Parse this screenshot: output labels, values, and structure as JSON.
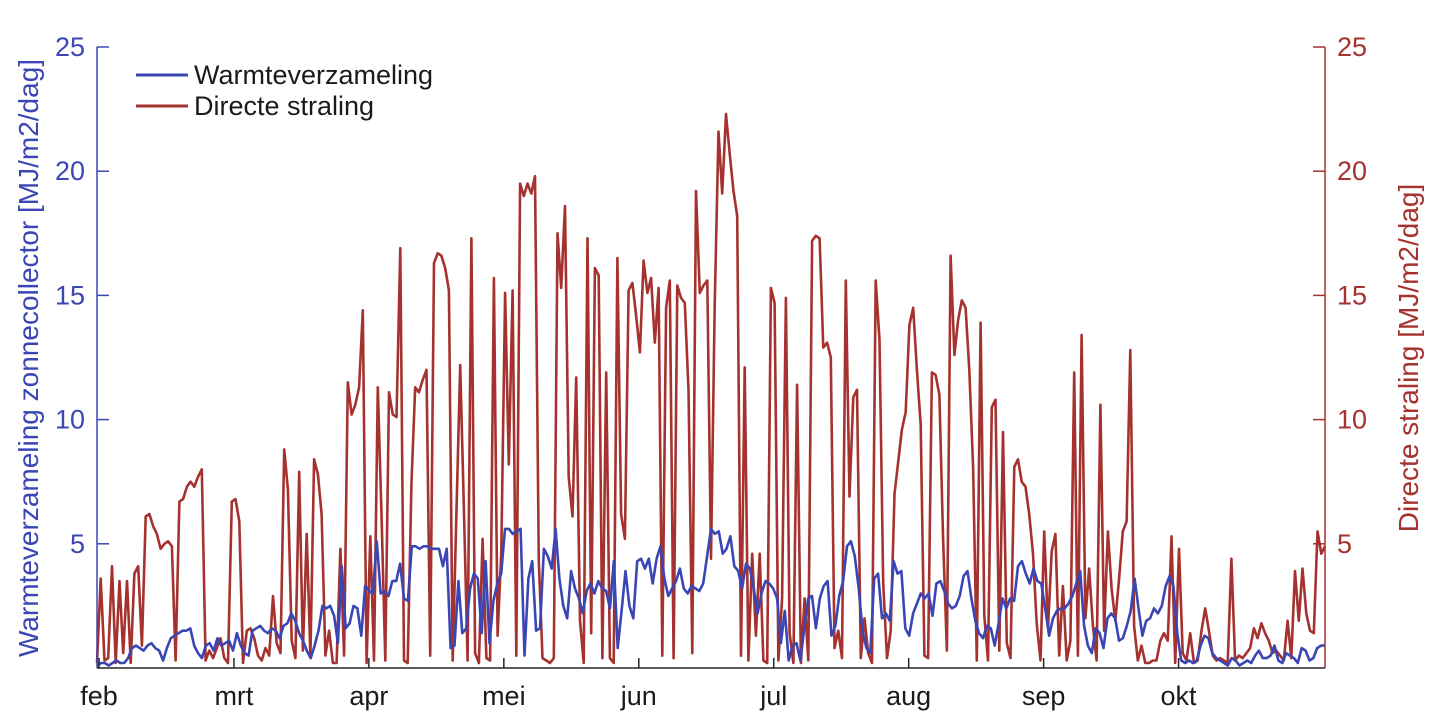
{
  "chart_data": {
    "type": "line",
    "x_axis": {
      "type": "time",
      "start": "feb",
      "end": "okt",
      "tick_labels": [
        "feb",
        "mrt",
        "apr",
        "mei",
        "jun",
        "jul",
        "aug",
        "sep",
        "okt"
      ]
    },
    "y_left": {
      "label": "Warmteverzameling zonnecollector [MJ/m2/dag]",
      "lim": [
        0,
        25
      ],
      "ticks": [
        5,
        10,
        15,
        20,
        25
      ],
      "color": "#3b46b5"
    },
    "y_right": {
      "label": "Directe straling [MJ/m2/dag]",
      "lim": [
        0,
        25
      ],
      "ticks": [
        5,
        10,
        15,
        20,
        25
      ],
      "color": "#a5322f"
    },
    "legend": {
      "placement": "top-left",
      "entries": [
        "Warmteverzameling",
        "Directe straling"
      ]
    },
    "series": [
      {
        "name": "Warmteverzameling",
        "axis": "left",
        "color": "#3b46b5",
        "values": [
          0.1,
          0.2,
          0.2,
          0.1,
          0.2,
          0.3,
          0.2,
          0.2,
          0.4,
          0.8,
          0.9,
          0.8,
          0.7,
          0.9,
          1.0,
          0.8,
          0.7,
          0.3,
          0.8,
          1.2,
          1.3,
          1.4,
          1.5,
          1.5,
          1.6,
          0.9,
          0.6,
          0.4,
          0.9,
          1.0,
          0.7,
          1.2,
          0.9,
          1.0,
          1.1,
          0.7,
          1.4,
          0.9,
          0.6,
          0.5,
          1.5,
          1.6,
          1.7,
          1.5,
          1.4,
          1.6,
          1.5,
          1.2,
          1.7,
          1.8,
          2.2,
          1.9,
          1.4,
          1.1,
          0.7,
          0.4,
          0.9,
          1.5,
          2.5,
          2.4,
          2.5,
          2.1,
          1.0,
          4.1,
          1.6,
          1.8,
          2.5,
          2.4,
          1.3,
          3.3,
          3.1,
          3.0,
          5.1,
          3.0,
          3.1,
          2.9,
          3.5,
          3.5,
          4.2,
          2.8,
          2.7,
          4.9,
          4.9,
          4.8,
          4.9,
          4.9,
          4.8,
          4.8,
          4.8,
          4.1,
          4.8,
          0.8,
          0.9,
          3.5,
          1.4,
          1.6,
          3.2,
          3.8,
          3.6,
          1.4,
          4.3,
          1.0,
          2.7,
          3.4,
          3.8,
          5.6,
          5.6,
          5.4,
          5.5,
          5.6,
          0.5,
          3.6,
          4.3,
          1.5,
          1.6,
          4.8,
          4.5,
          4.0,
          5.6,
          3.6,
          2.5,
          2.0,
          3.9,
          3.2,
          2.8,
          2.2,
          3.1,
          3.4,
          3.0,
          3.5,
          3.2,
          3.1,
          2.4,
          4.3,
          0.8,
          2.3,
          3.9,
          2.5,
          2.0,
          4.3,
          4.4,
          4.0,
          4.4,
          3.4,
          4.4,
          4.9,
          3.6,
          2.9,
          3.2,
          3.5,
          4.0,
          3.2,
          3.0,
          3.3,
          3.2,
          3.1,
          3.4,
          4.5,
          5.6,
          5.4,
          5.5,
          4.6,
          4.8,
          5.3,
          4.1,
          3.9,
          3.2,
          4.2,
          4.0,
          3.2,
          2.2,
          3.0,
          3.5,
          3.4,
          3.2,
          2.8,
          1.0,
          2.3,
          0.3,
          0.9,
          1.0,
          0.3,
          1.6,
          2.8,
          2.9,
          1.6,
          2.8,
          3.3,
          3.5,
          1.3,
          1.7,
          2.9,
          3.5,
          4.9,
          5.1,
          4.5,
          3.2,
          1.5,
          0.8,
          0.6,
          3.6,
          3.8,
          2.0,
          2.2,
          1.9,
          4.3,
          3.8,
          3.9,
          1.6,
          1.3,
          2.2,
          2.6,
          3.0,
          2.8,
          3.0,
          2.1,
          3.4,
          3.5,
          3.1,
          2.6,
          2.4,
          2.5,
          2.9,
          3.7,
          3.9,
          2.8,
          1.9,
          1.4,
          1.2,
          1.7,
          1.6,
          0.9,
          1.8,
          2.8,
          2.4,
          2.8,
          2.7,
          4.1,
          4.3,
          3.8,
          3.4,
          4.0,
          3.5,
          3.4,
          2.4,
          1.3,
          2.0,
          2.3,
          2.4,
          2.4,
          2.6,
          2.9,
          3.4,
          3.9,
          1.7,
          0.9,
          0.6,
          1.6,
          1.4,
          0.8,
          2.0,
          2.2,
          2.0,
          1.1,
          1.2,
          1.7,
          2.3,
          3.6,
          2.4,
          1.3,
          1.9,
          2.0,
          2.4,
          2.2,
          2.5,
          3.3,
          3.7,
          3.3,
          1.4,
          0.3,
          0.2,
          0.3,
          0.2,
          0.3,
          0.9,
          1.3,
          1.2,
          0.6,
          0.4,
          0.3,
          0.2,
          0.1,
          0.4,
          0.3,
          0.1,
          0.2,
          0.3,
          0.2,
          0.5,
          0.7,
          0.4,
          0.4,
          0.5,
          0.9,
          0.3,
          0.2,
          0.6,
          0.5,
          0.4,
          0.2,
          0.8,
          0.7,
          0.3,
          0.4,
          0.8,
          0.9,
          0.9
        ]
      },
      {
        "name": "Directe straling",
        "axis": "right",
        "color": "#a5322f",
        "values": [
          0.2,
          3.6,
          0.3,
          0.4,
          4.1,
          0.2,
          3.5,
          0.6,
          3.5,
          0.2,
          3.8,
          4.1,
          0.9,
          6.1,
          6.2,
          5.7,
          5.4,
          4.8,
          5.0,
          5.1,
          4.9,
          0.3,
          6.7,
          6.8,
          7.3,
          7.5,
          7.3,
          7.7,
          8.0,
          0.3,
          0.7,
          0.4,
          0.8,
          1.2,
          0.4,
          0.2,
          6.7,
          6.8,
          5.9,
          0.2,
          1.5,
          1.6,
          1.2,
          0.5,
          0.3,
          0.8,
          0.5,
          2.9,
          1.0,
          0.6,
          8.8,
          7.2,
          1.1,
          0.4,
          7.9,
          0.7,
          5.4,
          0.5,
          8.4,
          7.8,
          6.2,
          0.5,
          1.5,
          0.2,
          0.2,
          4.8,
          0.5,
          11.5,
          10.2,
          10.6,
          11.3,
          14.4,
          0.2,
          5.3,
          0.3,
          11.3,
          6.2,
          0.3,
          11.1,
          10.2,
          10.1,
          16.9,
          0.3,
          0.2,
          7.5,
          11.3,
          11.1,
          11.6,
          12.0,
          0.5,
          16.3,
          16.7,
          16.6,
          16.1,
          15.2,
          0.3,
          6.2,
          12.2,
          6.4,
          0.3,
          17.3,
          0.6,
          0.2,
          5.2,
          0.4,
          0.3,
          15.7,
          1.3,
          4.7,
          15.1,
          8.2,
          15.2,
          0.5,
          19.5,
          19.0,
          19.5,
          19.1,
          19.8,
          4.3,
          0.4,
          0.3,
          0.2,
          0.4,
          17.5,
          15.3,
          18.6,
          7.7,
          6.1,
          11.7,
          1.9,
          0.2,
          17.3,
          1.4,
          16.1,
          15.8,
          0.4,
          11.9,
          0.4,
          0.2,
          16.5,
          6.2,
          5.2,
          15.2,
          15.5,
          14.2,
          12.7,
          16.4,
          15.1,
          15.7,
          13.1,
          15.3,
          0.5,
          14.5,
          15.6,
          0.4,
          15.4,
          14.9,
          14.7,
          11.2,
          0.6,
          19.2,
          15.1,
          15.4,
          15.6,
          4.4,
          14.6,
          21.6,
          19.1,
          22.3,
          20.7,
          19.2,
          18.2,
          0.5,
          12.1,
          0.3,
          4.6,
          1.3,
          4.6,
          0.3,
          0.2,
          15.3,
          14.7,
          0.3,
          2.8,
          14.9,
          1.4,
          0.2,
          11.4,
          0.2,
          2.8,
          0.3,
          17.2,
          17.4,
          17.3,
          12.9,
          13.1,
          12.5,
          0.8,
          1.5,
          0.4,
          15.6,
          6.9,
          10.9,
          11.2,
          0.4,
          2.0,
          0.6,
          0.2,
          15.6,
          13.2,
          3.4,
          0.4,
          1.5,
          7.0,
          8.3,
          9.6,
          10.3,
          13.8,
          14.5,
          12.0,
          9.8,
          0.5,
          0.4,
          11.9,
          11.8,
          11.0,
          5.2,
          0.7,
          16.6,
          12.6,
          14.0,
          14.8,
          14.5,
          12.0,
          8.1,
          0.3,
          13.9,
          2.1,
          0.3,
          10.5,
          10.8,
          0.7,
          9.5,
          1.0,
          0.4,
          8.1,
          8.4,
          7.5,
          7.3,
          6.2,
          4.6,
          1.8,
          0.3,
          5.5,
          1.6,
          4.7,
          5.4,
          0.5,
          3.3,
          0.3,
          1.1,
          11.9,
          0.5,
          13.4,
          2.0,
          4.0,
          1.7,
          0.3,
          10.6,
          1.5,
          5.5,
          3.2,
          1.9,
          3.6,
          5.5,
          5.9,
          12.8,
          1.7,
          0.3,
          0.9,
          0.2,
          0.2,
          0.3,
          0.3,
          1.1,
          1.4,
          1.1,
          5.3,
          0.2,
          4.8,
          0.6,
          0.3,
          1.4,
          0.2,
          0.3,
          1.5,
          2.4,
          1.5,
          0.5,
          0.3,
          0.4,
          0.3,
          0.2,
          4.4,
          0.3,
          0.5,
          0.4,
          0.6,
          0.8,
          1.6,
          1.2,
          1.8,
          1.4,
          1.1,
          0.6,
          0.7,
          0.5,
          0.3,
          1.9,
          0.4,
          3.9,
          1.9,
          4.0,
          2.2,
          1.5,
          1.4,
          5.5,
          4.6,
          4.9
        ]
      }
    ]
  }
}
